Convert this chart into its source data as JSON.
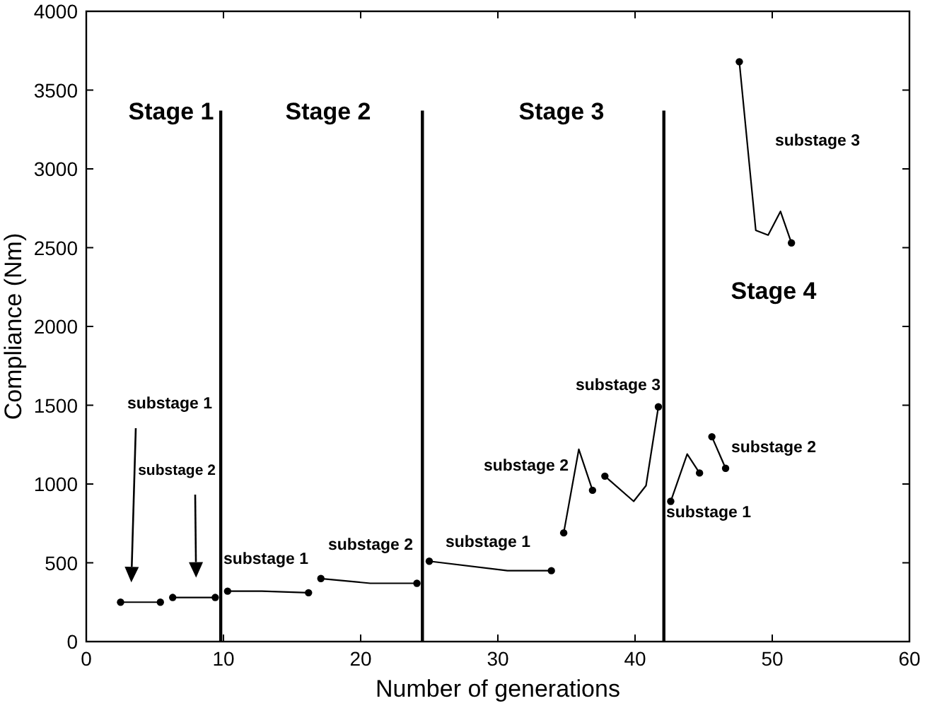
{
  "chart_data": {
    "type": "line",
    "xlabel": "Number of generations",
    "ylabel": "Compliance (Nm)",
    "xlim": [
      0,
      60
    ],
    "xticks": [
      0,
      10,
      20,
      30,
      40,
      50,
      60
    ],
    "ylim": [
      0,
      4000
    ],
    "yticks": [
      0,
      500,
      1000,
      1500,
      2000,
      2500,
      3000,
      3500,
      4000
    ],
    "line_style": "solid",
    "series": [
      {
        "color": "#000000",
        "marker": "circle",
        "x": [
          2.5,
          5.4
        ],
        "values": [
          250,
          250
        ]
      },
      {
        "color": "#000000",
        "marker": "circle",
        "x": [
          6.3,
          9.4
        ],
        "values": [
          280,
          280
        ]
      },
      {
        "color": "#000000",
        "x": [
          10.3,
          12.8,
          16.2
        ],
        "values": [
          320,
          320,
          310
        ]
      },
      {
        "color": "#000000",
        "x": [
          17.1,
          20.7,
          24.1
        ],
        "values": [
          400,
          370,
          370
        ]
      },
      {
        "color": "#000000",
        "x": [
          25.0,
          30.7,
          33.9
        ],
        "values": [
          510,
          450,
          450
        ]
      },
      {
        "color": "#000000",
        "x": [
          34.8,
          35.9,
          36.9
        ],
        "values": [
          690,
          1220,
          960
        ]
      },
      {
        "color": "#000000",
        "x": [
          37.8,
          39.9,
          40.8,
          41.7
        ],
        "values": [
          1050,
          890,
          990,
          1490
        ]
      },
      {
        "color": "#000000",
        "x": [
          42.6,
          43.8,
          44.7
        ],
        "values": [
          890,
          1190,
          1070
        ]
      },
      {
        "color": "#000000",
        "marker": "circle",
        "x": [
          45.6,
          46.6
        ],
        "values": [
          1300,
          1100
        ]
      },
      {
        "color": "#000000",
        "x": [
          47.6,
          48.8,
          49.7,
          50.6,
          51.4
        ],
        "values": [
          3680,
          2610,
          2580,
          2730,
          2530
        ]
      },
      {
        "color": "#000000",
        "marker": "none",
        "x": [
          9.8,
          9.8
        ],
        "values": [
          0,
          3370
        ]
      },
      {
        "color": "#000000",
        "marker": "none",
        "x": [
          24.5,
          24.5
        ],
        "values": [
          0,
          3370
        ]
      },
      {
        "color": "#000000",
        "marker": "none",
        "x": [
          42.1,
          42.1
        ],
        "values": [
          0,
          3370
        ]
      }
    ],
    "annotations": [
      "substage 1",
      "substage 2",
      "Stage 1",
      "Stage 2",
      "Stage 3",
      "Stage 4",
      "substage 3",
      "substage 1",
      "substage 2",
      "substage 1",
      "substage 2",
      "substage 3",
      "substage 1",
      "substage 2"
    ]
  }
}
